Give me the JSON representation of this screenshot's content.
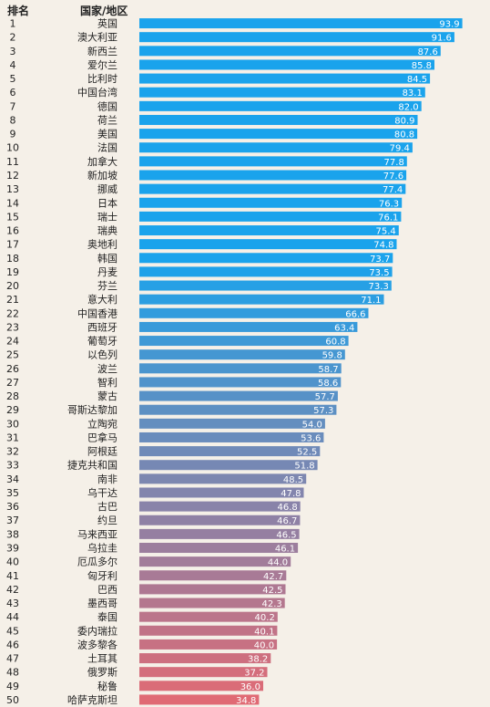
{
  "header": {
    "rank_label": "排名",
    "name_label": "国家/地区"
  },
  "chart_data": {
    "type": "bar",
    "orientation": "horizontal",
    "xlim": [
      0,
      94
    ],
    "categories": [
      "英国",
      "澳大利亚",
      "新西兰",
      "爱尔兰",
      "比利时",
      "中国台湾",
      "德国",
      "荷兰",
      "美国",
      "法国",
      "加拿大",
      "新加坡",
      "挪威",
      "日本",
      "瑞士",
      "瑞典",
      "奥地利",
      "韩国",
      "丹麦",
      "芬兰",
      "意大利",
      "中国香港",
      "西班牙",
      "葡萄牙",
      "以色列",
      "波兰",
      "智利",
      "蒙古",
      "哥斯达黎加",
      "立陶宛",
      "巴拿马",
      "阿根廷",
      "捷克共和国",
      "南非",
      "乌干达",
      "古巴",
      "约旦",
      "马来西亚",
      "乌拉圭",
      "厄瓜多尔",
      "匈牙利",
      "巴西",
      "墨西哥",
      "泰国",
      "委内瑞拉",
      "波多黎各",
      "土耳其",
      "俄罗斯",
      "秘鲁",
      "哈萨克斯坦"
    ],
    "ranks": [
      1,
      2,
      3,
      4,
      5,
      6,
      7,
      8,
      9,
      10,
      11,
      12,
      13,
      14,
      15,
      16,
      17,
      18,
      19,
      20,
      21,
      22,
      23,
      24,
      25,
      26,
      27,
      28,
      29,
      30,
      31,
      32,
      33,
      34,
      35,
      36,
      37,
      38,
      39,
      40,
      41,
      42,
      43,
      44,
      45,
      46,
      47,
      48,
      49,
      50
    ],
    "values": [
      93.9,
      91.6,
      87.6,
      85.8,
      84.5,
      83.1,
      82.0,
      80.9,
      80.8,
      79.4,
      77.8,
      77.6,
      77.4,
      76.3,
      76.1,
      75.4,
      74.8,
      73.7,
      73.5,
      73.3,
      71.1,
      66.6,
      63.4,
      60.8,
      59.8,
      58.7,
      58.6,
      57.7,
      57.3,
      54.0,
      53.6,
      52.5,
      51.8,
      48.5,
      47.8,
      46.8,
      46.7,
      46.5,
      46.1,
      44.0,
      42.7,
      42.5,
      42.3,
      40.2,
      40.1,
      40.0,
      38.2,
      37.2,
      36.0,
      34.8
    ],
    "value_labels": [
      "93.9",
      "91.6",
      "87.6",
      "85.8",
      "84.5",
      "83.1",
      "82.0",
      "80.9",
      "80.8",
      "79.4",
      "77.8",
      "77.6",
      "77.4",
      "76.3",
      "76.1",
      "75.4",
      "74.8",
      "73.7",
      "73.5",
      "73.3",
      "71.1",
      "66.6",
      "63.4",
      "60.8",
      "59.8",
      "58.7",
      "58.6",
      "57.7",
      "57.3",
      "54.0",
      "53.6",
      "52.5",
      "51.8",
      "48.5",
      "47.8",
      "46.8",
      "46.7",
      "46.5",
      "46.1",
      "44.0",
      "42.7",
      "42.5",
      "42.3",
      "40.2",
      "40.1",
      "40.0",
      "38.2",
      "37.2",
      "36.0",
      "34.8"
    ],
    "colors": {
      "top": "#1aa3ec",
      "bottom": "#e06a74",
      "value_text": "#ffffff"
    },
    "title": "",
    "xlabel": "",
    "ylabel": "",
    "grid": false
  }
}
